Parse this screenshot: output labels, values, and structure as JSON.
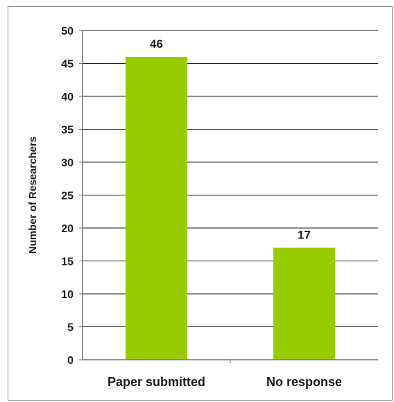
{
  "chart_data": {
    "type": "bar",
    "categories": [
      "Paper submitted",
      "No response"
    ],
    "values": [
      46,
      17
    ],
    "data_labels": [
      "46",
      "17"
    ],
    "title": "",
    "xlabel": "",
    "ylabel": "Number of Researchers",
    "ylim": [
      0,
      50
    ],
    "yticks": [
      "0",
      "5",
      "10",
      "15",
      "20",
      "25",
      "30",
      "35",
      "40",
      "45",
      "50"
    ],
    "grid": true,
    "legend": "none",
    "bar_color": "#99cc00"
  }
}
